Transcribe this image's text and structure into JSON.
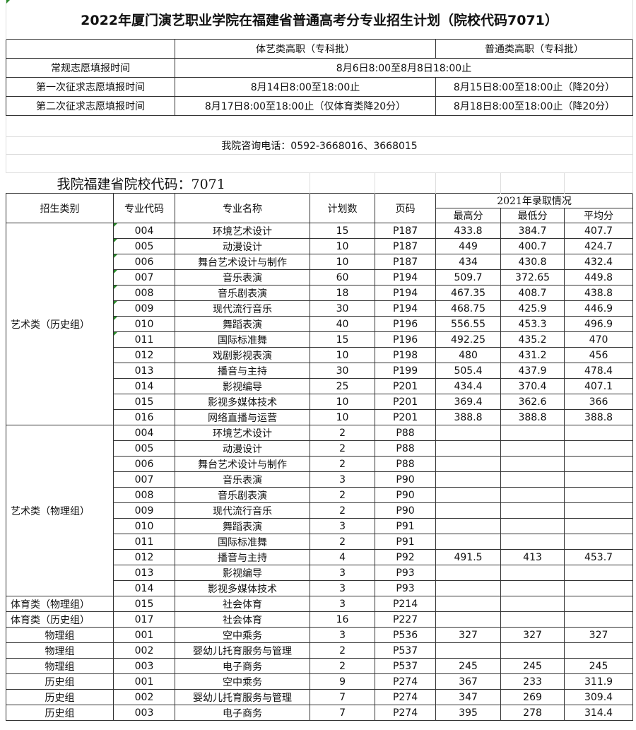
{
  "title": "2022年厦门演艺职业学院在福建省普通高考分专业招生计划（院校代码7071）",
  "schedule": {
    "headers": [
      "体艺类高职（专科批）",
      "普通类高职（专科批）"
    ],
    "rows": [
      {
        "label": "常规志愿填报时间",
        "merged": "8月6日8:00至8月8日18:00止"
      },
      {
        "label": "第一次征求志愿填报时间",
        "a": "8月14日8:00至18:00止",
        "b": "8月15日8:00至18:00止（降20分）"
      },
      {
        "label": "第二次征求志愿填报时间",
        "a": "8月17日8:00至18:00止（仅体育类降20分）",
        "b": "8月18日8:00至18:00止（降20分）"
      }
    ]
  },
  "phone": "我院咨询电话：0592-3668016、3668015",
  "school_code_line": "我院福建省院校代码：7071",
  "table": {
    "headers": {
      "category": "招生类别",
      "code": "专业代码",
      "name": "专业名称",
      "plan": "计划数",
      "page": "页码",
      "admission_2021": "2021年录取情况",
      "max": "最高分",
      "min": "最低分",
      "avg": "平均分"
    },
    "groups": [
      {
        "label": "艺术类（历史组）",
        "rows": [
          [
            "004",
            "环境艺术设计",
            "15",
            "P187",
            "433.8",
            "384.7",
            "407.7"
          ],
          [
            "005",
            "动漫设计",
            "10",
            "P187",
            "449",
            "400.7",
            "424.7"
          ],
          [
            "006",
            "舞台艺术设计与制作",
            "10",
            "P187",
            "434",
            "430.8",
            "432.4"
          ],
          [
            "007",
            "音乐表演",
            "60",
            "P194",
            "509.7",
            "372.65",
            "449.8"
          ],
          [
            "008",
            "音乐剧表演",
            "18",
            "P194",
            "467.35",
            "408.7",
            "438.8"
          ],
          [
            "009",
            "现代流行音乐",
            "30",
            "P194",
            "468.75",
            "425.9",
            "446.9"
          ],
          [
            "010",
            "舞蹈表演",
            "40",
            "P196",
            "556.55",
            "453.3",
            "496.9"
          ],
          [
            "011",
            "国际标准舞",
            "15",
            "P196",
            "492.25",
            "435.2",
            "470"
          ],
          [
            "012",
            "戏剧影视表演",
            "10",
            "P198",
            "480",
            "431.2",
            "456"
          ],
          [
            "013",
            "播音与主持",
            "30",
            "P199",
            "505.4",
            "437.9",
            "478.4"
          ],
          [
            "014",
            "影视编导",
            "25",
            "P201",
            "434.4",
            "370.4",
            "407.1"
          ],
          [
            "015",
            "影视多媒体技术",
            "10",
            "P201",
            "369.4",
            "362.6",
            "366"
          ],
          [
            "016",
            "网络直播与运营",
            "10",
            "P201",
            "388.8",
            "388.8",
            "388.8"
          ]
        ]
      },
      {
        "label": "艺术类（物理组）",
        "rows": [
          [
            "004",
            "环境艺术设计",
            "2",
            "P88",
            "",
            "",
            ""
          ],
          [
            "005",
            "动漫设计",
            "2",
            "P88",
            "",
            "",
            ""
          ],
          [
            "006",
            "舞台艺术设计与制作",
            "2",
            "P88",
            "",
            "",
            ""
          ],
          [
            "007",
            "音乐表演",
            "3",
            "P90",
            "",
            "",
            ""
          ],
          [
            "008",
            "音乐剧表演",
            "2",
            "P90",
            "",
            "",
            ""
          ],
          [
            "009",
            "现代流行音乐",
            "2",
            "P90",
            "",
            "",
            ""
          ],
          [
            "010",
            "舞蹈表演",
            "3",
            "P91",
            "",
            "",
            ""
          ],
          [
            "011",
            "国际标准舞",
            "2",
            "P91",
            "",
            "",
            ""
          ],
          [
            "012",
            "播音与主持",
            "4",
            "P92",
            "491.5",
            "413",
            "453.7"
          ],
          [
            "013",
            "影视编导",
            "3",
            "P93",
            "",
            "",
            ""
          ],
          [
            "014",
            "影视多媒体技术",
            "3",
            "P93",
            "",
            "",
            ""
          ]
        ]
      },
      {
        "label": "体育类（物理组）",
        "rows": [
          [
            "015",
            "社会体育",
            "3",
            "P214",
            "",
            "",
            ""
          ]
        ]
      },
      {
        "label": "体育类（历史组）",
        "rows": [
          [
            "017",
            "社会体育",
            "16",
            "P227",
            "",
            "",
            ""
          ]
        ]
      },
      {
        "label": "物理组",
        "center": true,
        "rows": [
          [
            "001",
            "空中乘务",
            "3",
            "P536",
            "327",
            "327",
            "327"
          ]
        ]
      },
      {
        "label": "物理组",
        "center": true,
        "rows": [
          [
            "002",
            "婴幼儿托育服务与管理",
            "2",
            "P537",
            "",
            "",
            ""
          ]
        ]
      },
      {
        "label": "物理组",
        "center": true,
        "rows": [
          [
            "003",
            "电子商务",
            "2",
            "P537",
            "245",
            "245",
            "245"
          ]
        ]
      },
      {
        "label": "历史组",
        "center": true,
        "rows": [
          [
            "001",
            "空中乘务",
            "9",
            "P274",
            "367",
            "233",
            "311.9"
          ]
        ]
      },
      {
        "label": "历史组",
        "center": true,
        "rows": [
          [
            "002",
            "婴幼儿托育服务与管理",
            "7",
            "P274",
            "347",
            "269",
            "309.4"
          ]
        ]
      },
      {
        "label": "历史组",
        "center": true,
        "rows": [
          [
            "003",
            "电子商务",
            "7",
            "P274",
            "395",
            "278",
            "314.4"
          ]
        ]
      }
    ]
  }
}
